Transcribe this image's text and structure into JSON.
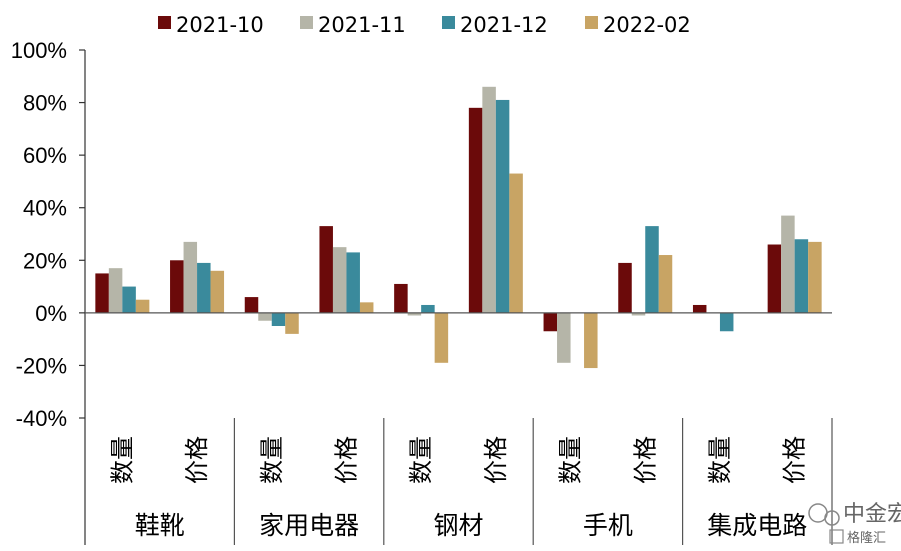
{
  "chart_data": {
    "type": "bar",
    "groups": [
      "鞋靴",
      "家用电器",
      "钢材",
      "手机",
      "集成电路"
    ],
    "categories": [
      "数量",
      "价格",
      "数量",
      "价格",
      "数量",
      "价格",
      "数量",
      "价格",
      "数量",
      "价格"
    ],
    "series": [
      {
        "name": "2021-10",
        "color": "#6B0A0A",
        "values": [
          15,
          20,
          6,
          33,
          11,
          78,
          -7,
          19,
          3,
          26
        ]
      },
      {
        "name": "2021-11",
        "color": "#B5B5A8",
        "values": [
          17,
          27,
          -3,
          25,
          -1,
          86,
          -19,
          -1,
          0,
          37
        ]
      },
      {
        "name": "2021-12",
        "color": "#3A8A9C",
        "values": [
          10,
          19,
          -5,
          23,
          3,
          81,
          0,
          33,
          -7,
          28
        ]
      },
      {
        "name": "2022-02",
        "color": "#C8A464",
        "values": [
          5,
          16,
          -8,
          4,
          -19,
          53,
          -21,
          22,
          0,
          27
        ]
      }
    ],
    "yticks": [
      "100%",
      "80%",
      "60%",
      "40%",
      "20%",
      "0%",
      "-20%",
      "-40%"
    ],
    "ylim": [
      -40,
      100
    ],
    "legend_position": "top"
  },
  "watermark": {
    "text1": "中金宏观",
    "text2": "格隆汇"
  }
}
